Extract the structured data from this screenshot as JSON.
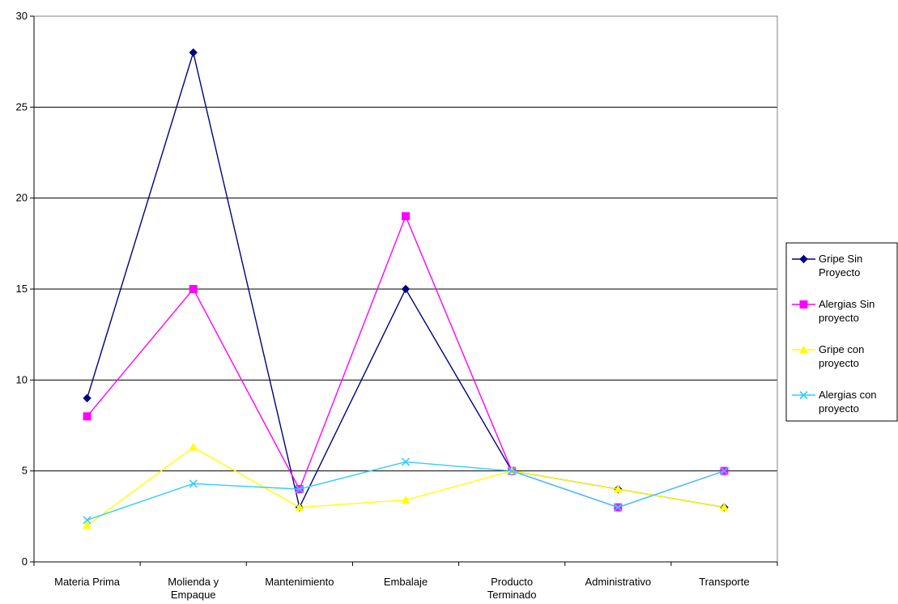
{
  "chart_data": {
    "type": "line",
    "categories": [
      [
        "Materia Prima"
      ],
      [
        "Molienda y",
        "Empaque"
      ],
      [
        "Mantenimiento"
      ],
      [
        "Embalaje"
      ],
      [
        "Producto",
        "Terminado"
      ],
      [
        "Administrativo"
      ],
      [
        "Transporte"
      ]
    ],
    "ylim": [
      0,
      30
    ],
    "yticks": [
      "0",
      "5",
      "10",
      "15",
      "20",
      "25",
      "30"
    ],
    "grid": true,
    "legend_position": "right",
    "series": [
      {
        "name": [
          "Gripe Sin",
          "Proyecto"
        ],
        "color": "#000080",
        "marker": "diamond",
        "values": [
          9,
          28,
          3,
          15,
          5,
          4,
          3
        ]
      },
      {
        "name": [
          "Alergias Sin",
          "proyecto"
        ],
        "color": "#FF00FF",
        "marker": "square",
        "values": [
          8,
          15,
          4,
          19,
          5,
          3,
          5
        ]
      },
      {
        "name": [
          "Gripe con",
          "proyecto"
        ],
        "color": "#FFFF00",
        "marker": "triangle",
        "values": [
          2,
          6.3,
          3,
          3.4,
          5,
          4,
          3
        ]
      },
      {
        "name": [
          "Alergias con",
          "proyecto"
        ],
        "color": "#33CCFF",
        "marker": "x",
        "values": [
          2.3,
          4.3,
          4,
          5.5,
          5,
          3,
          5
        ]
      }
    ]
  }
}
